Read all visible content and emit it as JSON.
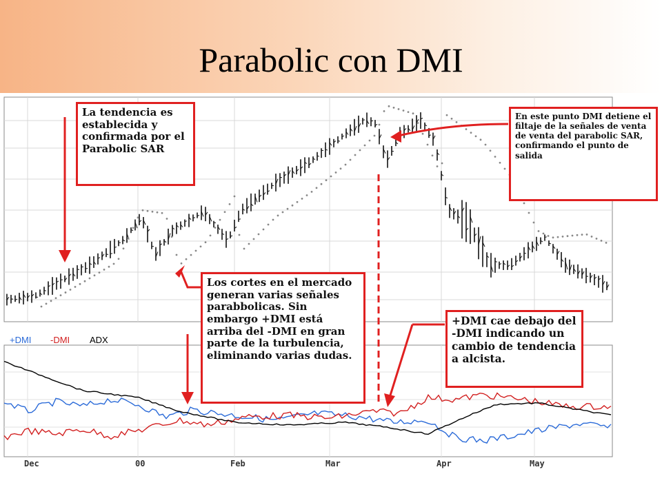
{
  "slide": {
    "title": "Parabolic con DMI"
  },
  "colors": {
    "plus_dmi": "#2a6ad8",
    "minus_dmi": "#d22020",
    "adx": "#000000",
    "annotation": "#e02020",
    "price": "#111111",
    "sar": "#888888"
  },
  "chart_data": [
    {
      "type": "line",
      "panel": "price",
      "x": [
        "Dec",
        "00",
        "Feb",
        "Mar",
        "Apr",
        "May"
      ],
      "series": [
        {
          "name": "Price",
          "values": [
            10,
            17,
            30,
            47,
            35,
            28
          ]
        },
        {
          "name": "Parabolic SAR",
          "values": [
            8,
            15,
            33,
            44,
            40,
            32
          ]
        }
      ],
      "grid": true
    },
    {
      "type": "line",
      "panel": "indicator",
      "x": [
        "Dec",
        "00",
        "Feb",
        "Mar",
        "Apr",
        "May"
      ],
      "series": [
        {
          "name": "+DMI",
          "values": [
            30,
            28,
            24,
            26,
            15,
            22
          ]
        },
        {
          "name": "-DMI",
          "values": [
            12,
            14,
            18,
            22,
            32,
            26
          ]
        },
        {
          "name": "ADX",
          "values": [
            45,
            38,
            22,
            18,
            20,
            24
          ]
        }
      ],
      "legend_position": "top-left"
    }
  ],
  "legend": [
    "+DMI",
    "-DMI",
    "ADX"
  ],
  "x_labels": [
    "Dec",
    "00",
    "Feb",
    "Mar",
    "Apr",
    "May"
  ],
  "annotations": {
    "top_left": "La tendencia es establecida y confirmada por el Parabolic SAR",
    "top_right": "En este punto DMI detiene el filtaje de la señales de venta de venta del parabolic SAR, confirmando el punto de salida",
    "middle": "Los cortes en el mercado generan varias señales parabbolicas. Sin embargo +DMI está arriba del -DMI en gran parte de la turbulencia, eliminando varias dudas.",
    "bottom_right": "+DMI cae debajo del -DMI indicando un cambio de tendencia a alcista."
  }
}
